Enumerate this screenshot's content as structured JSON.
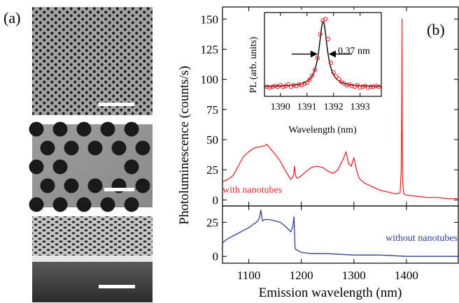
{
  "panel_a": {
    "label": "(a)",
    "images": [
      {
        "name": "sem-top-view",
        "caption": ""
      },
      {
        "name": "sem-cavity-zoom",
        "caption": ""
      },
      {
        "name": "sem-tilted-view",
        "caption": ""
      }
    ]
  },
  "chart_data": [
    {
      "type": "line",
      "panel_label": "(b)",
      "xlabel": "Emission wavelength (nm)",
      "ylabel": "Photoluminescence (counts/s)",
      "xlim": [
        1050,
        1500
      ],
      "x_ticks": [
        1100,
        1200,
        1300,
        1400
      ],
      "grid": false,
      "subplots": [
        {
          "name": "upper",
          "ylim": [
            -5,
            160
          ],
          "y_ticks": [
            0,
            25,
            50,
            75,
            100,
            125,
            150
          ],
          "series": [
            {
              "name": "with nanotubes",
              "color": "#e8282a",
              "x": [
                1050,
                1060,
                1070,
                1080,
                1090,
                1100,
                1110,
                1120,
                1130,
                1135,
                1140,
                1150,
                1160,
                1170,
                1180,
                1185,
                1187,
                1189,
                1192,
                1200,
                1210,
                1220,
                1230,
                1240,
                1250,
                1260,
                1270,
                1275,
                1280,
                1285,
                1290,
                1295,
                1300,
                1305,
                1310,
                1320,
                1330,
                1340,
                1350,
                1360,
                1370,
                1380,
                1388,
                1390,
                1391,
                1391.6,
                1392,
                1393,
                1395,
                1400,
                1420,
                1440,
                1460,
                1480,
                1500
              ],
              "y": [
                15,
                17,
                20,
                28,
                36,
                40,
                43,
                44,
                45,
                46,
                43,
                38,
                32,
                24,
                17,
                20,
                28,
                20,
                18,
                20,
                24,
                27,
                28,
                27,
                24,
                22,
                25,
                30,
                34,
                40,
                30,
                28,
                35,
                25,
                18,
                14,
                12,
                10,
                8,
                7,
                6,
                5,
                6,
                25,
                75,
                150,
                60,
                15,
                5,
                4,
                3,
                2,
                2,
                1,
                1
              ]
            }
          ]
        },
        {
          "name": "lower",
          "ylim": [
            -5,
            37
          ],
          "y_ticks": [
            0,
            25
          ],
          "series": [
            {
              "name": "without nanotubes",
              "color": "#2f3f9e",
              "x": [
                1050,
                1060,
                1070,
                1080,
                1090,
                1100,
                1110,
                1115,
                1120,
                1123,
                1126,
                1130,
                1140,
                1150,
                1160,
                1170,
                1180,
                1184,
                1186,
                1187,
                1188,
                1190,
                1195,
                1200,
                1220,
                1250,
                1300,
                1350,
                1400,
                1450,
                1500
              ],
              "y": [
                10,
                13,
                15,
                17,
                19,
                21,
                24,
                25,
                28,
                34,
                26,
                27,
                27,
                26,
                25,
                22,
                18,
                22,
                29,
                20,
                6,
                5,
                4,
                3,
                2,
                2,
                1,
                1,
                0,
                0,
                0
              ]
            }
          ]
        }
      ],
      "inset": {
        "xlabel": "Wavelength (nm)",
        "ylabel": "PL (arb. units)",
        "xlim": [
          1389.4,
          1393.8
        ],
        "x_ticks": [
          1390,
          1391,
          1392,
          1393
        ],
        "ylim": [
          0,
          1.05
        ],
        "annotation": "0.37 nm",
        "fit": {
          "name": "fit",
          "color": "#000000",
          "center": 1391.61,
          "fwhm": 0.37,
          "amplitude": 0.82,
          "baseline": 0.12
        },
        "points": {
          "name": "data",
          "color": "#e8282a",
          "x": [
            1389.5,
            1389.6,
            1389.7,
            1389.8,
            1389.9,
            1390.0,
            1390.1,
            1390.2,
            1390.3,
            1390.4,
            1390.5,
            1390.6,
            1390.7,
            1390.8,
            1390.9,
            1391.0,
            1391.1,
            1391.2,
            1391.3,
            1391.4,
            1391.5,
            1391.6,
            1391.7,
            1391.8,
            1391.9,
            1392.0,
            1392.1,
            1392.2,
            1392.3,
            1392.4,
            1392.5,
            1392.6,
            1392.7,
            1392.8,
            1392.9,
            1393.0,
            1393.1,
            1393.2,
            1393.3,
            1393.4,
            1393.5,
            1393.6,
            1393.7
          ],
          "y": [
            0.12,
            0.11,
            0.12,
            0.13,
            0.12,
            0.14,
            0.12,
            0.13,
            0.15,
            0.12,
            0.14,
            0.13,
            0.15,
            0.14,
            0.16,
            0.17,
            0.21,
            0.26,
            0.33,
            0.48,
            0.78,
            0.95,
            0.97,
            0.72,
            0.42,
            0.3,
            0.25,
            0.22,
            0.18,
            0.16,
            0.14,
            0.15,
            0.13,
            0.12,
            0.14,
            0.11,
            0.12,
            0.13,
            0.11,
            0.12,
            0.12,
            0.13,
            0.12
          ]
        }
      }
    }
  ]
}
